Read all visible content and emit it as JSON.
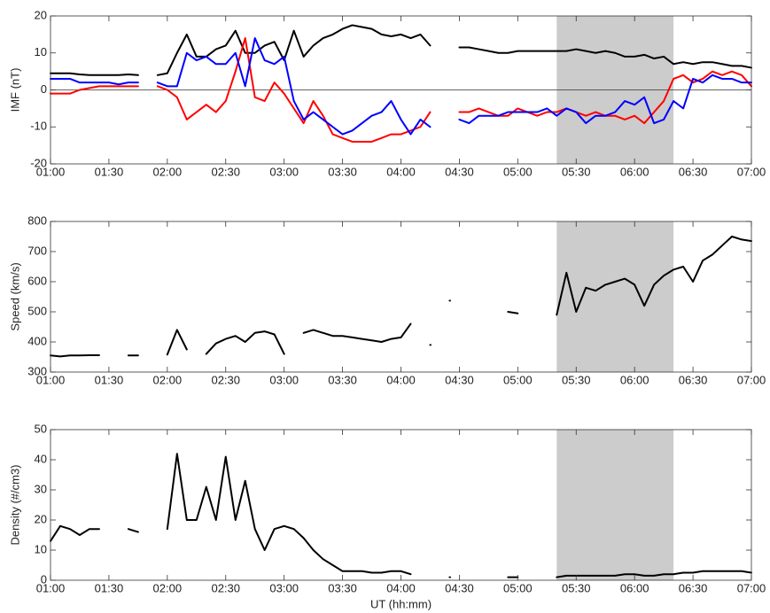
{
  "chart_data": [
    {
      "type": "line",
      "ylabel": "IMF (nT)",
      "ylim": [
        -20,
        20
      ],
      "yticks": [
        -20,
        -10,
        0,
        10,
        20
      ],
      "xlim": [
        0,
        360
      ],
      "reference_line": 0,
      "shaded_region": [
        260,
        320
      ],
      "shade_color": "#cccccc",
      "x": [
        0,
        5,
        10,
        15,
        20,
        25,
        30,
        35,
        40,
        45,
        50,
        55,
        60,
        65,
        70,
        75,
        80,
        85,
        90,
        95,
        100,
        105,
        110,
        115,
        120,
        125,
        130,
        135,
        140,
        145,
        150,
        155,
        160,
        165,
        170,
        175,
        180,
        185,
        190,
        195,
        200,
        205,
        210,
        215,
        220,
        225,
        230,
        235,
        240,
        245,
        250,
        255,
        260,
        265,
        270,
        275,
        280,
        285,
        290,
        295,
        300,
        305,
        310,
        315,
        320,
        325,
        330,
        335,
        340,
        345,
        350,
        355,
        360
      ],
      "xticks": [
        {
          "value": 0,
          "label": "01:00"
        },
        {
          "value": 30,
          "label": "01:30"
        },
        {
          "value": 60,
          "label": "02:00"
        },
        {
          "value": 90,
          "label": "02:30"
        },
        {
          "value": 120,
          "label": "03:00"
        },
        {
          "value": 150,
          "label": "03:30"
        },
        {
          "value": 180,
          "label": "04:00"
        },
        {
          "value": 210,
          "label": "04:30"
        },
        {
          "value": 240,
          "label": "05:00"
        },
        {
          "value": 270,
          "label": "05:30"
        },
        {
          "value": 300,
          "label": "06:00"
        },
        {
          "value": 330,
          "label": "06:30"
        },
        {
          "value": 360,
          "label": "07:00"
        }
      ],
      "series": [
        {
          "color": "#000000",
          "values": [
            4.5,
            4.5,
            4.5,
            4.2,
            4,
            4,
            4,
            4,
            4.2,
            4,
            null,
            4,
            4.5,
            10,
            15,
            9,
            9,
            11,
            12,
            16,
            10,
            10,
            12,
            13,
            8,
            16,
            9,
            12,
            14,
            15,
            16.5,
            17.5,
            17,
            16.5,
            15,
            14.5,
            15,
            14,
            15,
            12,
            null,
            null,
            11.5,
            11.5,
            11,
            10.5,
            10,
            10,
            10.5,
            10.5,
            10.5,
            10.5,
            10.5,
            10.5,
            11,
            10.5,
            10,
            10.5,
            10,
            9,
            9,
            9.5,
            8.5,
            9,
            7,
            7.5,
            7,
            7.5,
            7.5,
            7,
            6.5,
            6.5,
            6
          ]
        },
        {
          "color": "#ff0000",
          "values": [
            -1,
            -1,
            -1,
            0,
            0.5,
            1,
            1,
            1,
            1,
            1,
            null,
            1,
            0,
            -2,
            -8,
            -6,
            -4,
            -6,
            -3,
            5,
            14,
            -2,
            -3,
            2,
            -1,
            -5,
            -9,
            -3,
            -7,
            -12,
            -13,
            -14,
            -14,
            -14,
            -13,
            -12,
            -12,
            -11,
            -10,
            -6,
            null,
            null,
            -6,
            -6,
            -5,
            -6,
            -7,
            -7,
            -5,
            -6,
            -7,
            -6,
            -6,
            -5,
            -6,
            -7,
            -6,
            -7,
            -7,
            -8,
            -7,
            -9,
            -6,
            -3,
            3,
            4,
            2,
            3,
            5,
            4,
            5,
            4,
            1
          ]
        },
        {
          "color": "#0000ff",
          "values": [
            3,
            3,
            3,
            2,
            2,
            2,
            2,
            1.5,
            2,
            2,
            null,
            2,
            1,
            1,
            10,
            8,
            9,
            7,
            7,
            10,
            1,
            14,
            8,
            7,
            9,
            -3,
            -8,
            -6,
            -8,
            -10,
            -12,
            -11,
            -9,
            -7,
            -6,
            -3,
            -8,
            -12,
            -8,
            -10,
            null,
            null,
            -8,
            -9,
            -7,
            -7,
            -7,
            -6,
            -6,
            -6,
            -6,
            -5,
            -7,
            -5,
            -6,
            -9,
            -7,
            -7,
            -6,
            -3,
            -4,
            -2,
            -9,
            -8,
            -3,
            -5,
            3,
            2,
            4,
            3,
            3,
            2,
            2
          ]
        }
      ]
    },
    {
      "type": "line",
      "ylabel": "Speed (km/s)",
      "ylim": [
        300,
        800
      ],
      "yticks": [
        300,
        400,
        500,
        600,
        700,
        800
      ],
      "xlim": [
        0,
        360
      ],
      "shaded_region": [
        260,
        320
      ],
      "shade_color": "#cccccc",
      "x": [
        0,
        5,
        10,
        15,
        20,
        25,
        30,
        35,
        40,
        45,
        50,
        55,
        60,
        65,
        70,
        75,
        80,
        85,
        90,
        95,
        100,
        105,
        110,
        115,
        120,
        125,
        130,
        135,
        140,
        145,
        150,
        155,
        160,
        165,
        170,
        175,
        180,
        185,
        190,
        195,
        200,
        205,
        210,
        215,
        220,
        225,
        230,
        235,
        240,
        245,
        250,
        255,
        260,
        265,
        270,
        275,
        280,
        285,
        290,
        295,
        300,
        305,
        310,
        315,
        320,
        325,
        330,
        335,
        340,
        345,
        350,
        355,
        360
      ],
      "xticks": [
        {
          "value": 0,
          "label": "01:00"
        },
        {
          "value": 30,
          "label": "01:30"
        },
        {
          "value": 60,
          "label": "02:00"
        },
        {
          "value": 90,
          "label": "02:30"
        },
        {
          "value": 120,
          "label": "03:00"
        },
        {
          "value": 150,
          "label": "03:30"
        },
        {
          "value": 180,
          "label": "04:00"
        },
        {
          "value": 210,
          "label": "04:30"
        },
        {
          "value": 240,
          "label": "05:00"
        },
        {
          "value": 270,
          "label": "05:30"
        },
        {
          "value": 300,
          "label": "06:00"
        },
        {
          "value": 330,
          "label": "06:30"
        },
        {
          "value": 360,
          "label": "07:00"
        }
      ],
      "series": [
        {
          "color": "#000000",
          "values": [
            355,
            352,
            355,
            355,
            356,
            356,
            null,
            null,
            355,
            355,
            null,
            null,
            358,
            440,
            375,
            null,
            360,
            395,
            410,
            420,
            400,
            430,
            435,
            425,
            360,
            null,
            430,
            440,
            430,
            420,
            420,
            415,
            410,
            405,
            400,
            410,
            415,
            460,
            null,
            390,
            null,
            537,
            null,
            null,
            null,
            null,
            null,
            500,
            495,
            null,
            null,
            null,
            490,
            630,
            500,
            580,
            570,
            590,
            600,
            610,
            590,
            520,
            590,
            620,
            640,
            650,
            600,
            670,
            690,
            720,
            750,
            740,
            735
          ]
        }
      ]
    },
    {
      "type": "line",
      "ylabel": "Density (#/cm3)",
      "xlabel": "UT (hh:mm)",
      "ylim": [
        0,
        50
      ],
      "yticks": [
        0,
        10,
        20,
        30,
        40,
        50
      ],
      "xlim": [
        0,
        360
      ],
      "shaded_region": [
        260,
        320
      ],
      "shade_color": "#cccccc",
      "x": [
        0,
        5,
        10,
        15,
        20,
        25,
        30,
        35,
        40,
        45,
        50,
        55,
        60,
        65,
        70,
        75,
        80,
        85,
        90,
        95,
        100,
        105,
        110,
        115,
        120,
        125,
        130,
        135,
        140,
        145,
        150,
        155,
        160,
        165,
        170,
        175,
        180,
        185,
        190,
        195,
        200,
        205,
        210,
        215,
        220,
        225,
        230,
        235,
        240,
        245,
        250,
        255,
        260,
        265,
        270,
        275,
        280,
        285,
        290,
        295,
        300,
        305,
        310,
        315,
        320,
        325,
        330,
        335,
        340,
        345,
        350,
        355,
        360
      ],
      "xticks": [
        {
          "value": 0,
          "label": "01:00"
        },
        {
          "value": 30,
          "label": "01:30"
        },
        {
          "value": 60,
          "label": "02:00"
        },
        {
          "value": 90,
          "label": "02:30"
        },
        {
          "value": 120,
          "label": "03:00"
        },
        {
          "value": 150,
          "label": "03:30"
        },
        {
          "value": 180,
          "label": "04:00"
        },
        {
          "value": 210,
          "label": "04:30"
        },
        {
          "value": 240,
          "label": "05:00"
        },
        {
          "value": 270,
          "label": "05:30"
        },
        {
          "value": 300,
          "label": "06:00"
        },
        {
          "value": 330,
          "label": "06:30"
        },
        {
          "value": 360,
          "label": "07:00"
        }
      ],
      "series": [
        {
          "color": "#000000",
          "values": [
            13,
            18,
            17,
            15,
            17,
            17,
            null,
            null,
            17,
            16,
            null,
            null,
            17,
            42,
            20,
            20,
            31,
            20,
            41,
            20,
            33,
            17,
            10,
            17,
            18,
            17,
            14,
            10,
            7,
            5,
            3,
            3,
            3,
            2.5,
            2.5,
            3,
            3,
            2,
            null,
            null,
            null,
            1,
            null,
            null,
            null,
            null,
            null,
            1,
            1,
            null,
            null,
            null,
            1,
            1.5,
            1.5,
            1.5,
            1.5,
            1.5,
            1.5,
            2,
            2,
            1.5,
            1.5,
            2,
            2,
            2.5,
            2.5,
            3,
            3,
            3,
            3,
            3,
            2.5
          ]
        }
      ]
    }
  ]
}
